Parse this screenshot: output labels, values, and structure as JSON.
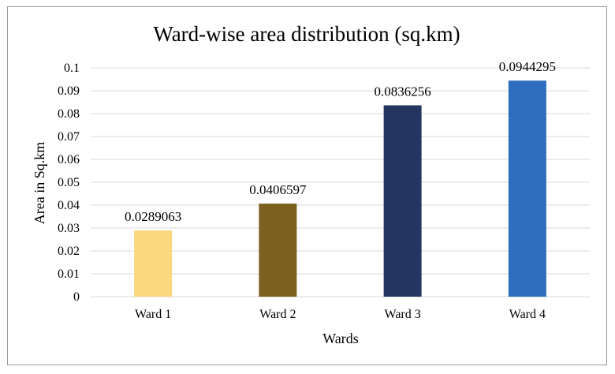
{
  "chart_data": {
    "type": "bar",
    "title": "Ward-wise area distribution (sq.km)",
    "xlabel": "Wards",
    "ylabel": "Area in Sq.km",
    "categories": [
      "Ward 1",
      "Ward 2",
      "Ward 3",
      "Ward 4"
    ],
    "values": [
      0.0289063,
      0.0406597,
      0.0836256,
      0.0944295
    ],
    "value_labels": [
      "0.0289063",
      "0.0406597",
      "0.0836256",
      "0.0944295"
    ],
    "colors": [
      "#f9d87e",
      "#7b6020",
      "#243660",
      "#2f6dbe"
    ],
    "ylim": [
      0,
      0.1
    ],
    "yticks": [
      0,
      0.01,
      0.02,
      0.03,
      0.04,
      0.05,
      0.06,
      0.07,
      0.08,
      0.09,
      0.1
    ],
    "ytick_labels": [
      "0",
      "0.01",
      "0.02",
      "0.03",
      "0.04",
      "0.05",
      "0.06",
      "0.07",
      "0.08",
      "0.09",
      "0.1"
    ],
    "grid": true,
    "legend": "none"
  }
}
